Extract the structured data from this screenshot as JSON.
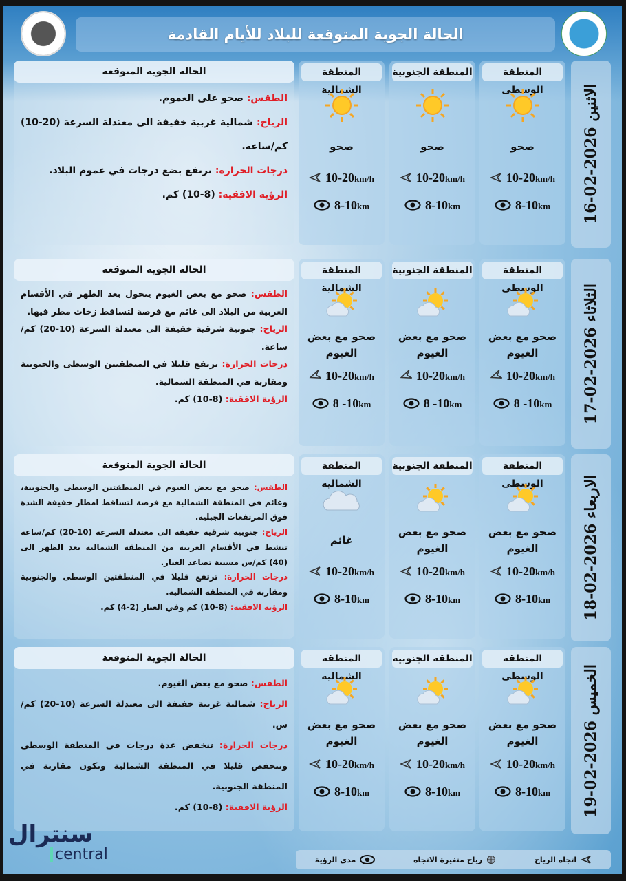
{
  "header": {
    "title": "الحالة الجوية المتوقعة للبلاد للأيام القادمة"
  },
  "colors": {
    "label_red": "#e01e26",
    "banner": "#2f7fc1"
  },
  "days": [
    {
      "day": "الاثنين 2026-02-16",
      "regions": [
        {
          "name": "المنطقة الوسطى",
          "condition": "صحو",
          "icon": "sun-icon",
          "wind": "10-20",
          "wind_unit": "km/h",
          "visibility": "8-10",
          "vis_unit": "km"
        },
        {
          "name": "المنطقة الجنوبية",
          "condition": "صحو",
          "icon": "sun-icon",
          "wind": "10-20",
          "wind_unit": "km/h",
          "visibility": "8-10",
          "vis_unit": "km"
        },
        {
          "name": "المنطقة الشمالية",
          "condition": "صحو",
          "icon": "sun-icon",
          "wind": "10-20",
          "wind_unit": "km/h",
          "visibility": "8-10",
          "vis_unit": "km"
        }
      ],
      "forecast": {
        "title": "الحالة الجوية المتوقعة",
        "lines": [
          {
            "label": "الطقس:",
            "text": "صحو على العموم."
          },
          {
            "label": "الرياح:",
            "text": "شمالية غربية خفيفة الى معتدلة السرعة (20-10) كم/ساعة."
          },
          {
            "label": "درجات الحرارة:",
            "text": "ترتفع بضع درجات في عموم البلاد."
          },
          {
            "label": "الرؤية الافقية:",
            "text": "(8-10) كم."
          }
        ]
      }
    },
    {
      "day": "الثلاثاء 2026-02-17",
      "regions": [
        {
          "name": "المنطقة الوسطى",
          "condition": "صحو مع بعض الغيوم",
          "icon": "partly-cloudy-icon",
          "wind": "10-20",
          "wind_unit": "km/h",
          "visibility": "8 -10",
          "vis_unit": "km"
        },
        {
          "name": "المنطقة الجنوبية",
          "condition": "صحو مع بعض الغيوم",
          "icon": "partly-cloudy-icon",
          "wind": "10-20",
          "wind_unit": "km/h",
          "visibility": "8 -10",
          "vis_unit": "km"
        },
        {
          "name": "المنطقة الشمالية",
          "condition": "صحو مع بعض الغيوم",
          "icon": "partly-cloudy-icon",
          "wind": "10-20",
          "wind_unit": "km/h",
          "visibility": "8 -10",
          "vis_unit": "km"
        }
      ],
      "forecast": {
        "title": "الحالة الجوية المتوقعة",
        "lines": [
          {
            "label": "الطقس:",
            "text": "صحو مع بعض الغيوم يتحول بعد الظهر في الأقسام الغربية من البلاد الى غائم مع فرصة لتساقط زخات مطر فيها."
          },
          {
            "label": "الرياح:",
            "text": "جنوبية شرقية خفيفة الى معتدلة السرعة (10-20) كم/ساعة."
          },
          {
            "label": "درجات الحرارة:",
            "text": "ترتفع قليلا في المنطقتين الوسطى والجنوبية ومقاربة في المنطقة الشمالية."
          },
          {
            "label": "الرؤية الافقية:",
            "text": "(8-10) كم."
          }
        ]
      }
    },
    {
      "day": "الاربعاء 2026-02-18",
      "regions": [
        {
          "name": "المنطقة الوسطى",
          "condition": "صحو مع بعض الغيوم",
          "icon": "partly-cloudy-icon",
          "wind": "10-20",
          "wind_unit": "km/h",
          "visibility": "8-10",
          "vis_unit": "km"
        },
        {
          "name": "المنطقة الجنوبية",
          "condition": "صحو مع بعض الغيوم",
          "icon": "partly-cloudy-icon",
          "wind": "10-20",
          "wind_unit": "km/h",
          "visibility": "8-10",
          "vis_unit": "km"
        },
        {
          "name": "المنطقة الشمالية",
          "condition": "غائم",
          "icon": "cloud-icon",
          "wind": "10-20",
          "wind_unit": "km/h",
          "visibility": "8-10",
          "vis_unit": "km"
        }
      ],
      "forecast": {
        "title": "الحالة الجوية المتوقعة",
        "lines": [
          {
            "label": "الطقس:",
            "text": "صحو مع بعض الغيوم في المنطقتين الوسطى والجنوبية، وغائم في المنطقة الشمالية مع فرصة لتساقط امطار خفيفة الشدة فوق المرتفعات الجبلية."
          },
          {
            "label": "الرياح:",
            "text": "جنوبية شرقية خفيفة الى معتدلة السرعة (10-20) كم/ساعة تنشط في الأقسام الغربية من المنطقة الشمالية بعد الظهر الى (40) كم/س مسببة تصاعد الغبار."
          },
          {
            "label": "درجات الحرارة:",
            "text": "ترتفع قليلا في المنطقتين الوسطى والجنوبية ومقاربة في المنطقة الشمالية."
          },
          {
            "label": "الرؤية الافقية:",
            "text": "(8-10) كم وفي الغبار (2-4) كم."
          }
        ]
      }
    },
    {
      "day": "الخميس 2026-02-19",
      "regions": [
        {
          "name": "المنطقة الوسطى",
          "condition": "صحو مع بعض الغيوم",
          "icon": "partly-cloudy-icon",
          "wind": "10-20",
          "wind_unit": "km/h",
          "visibility": "8-10",
          "vis_unit": "km"
        },
        {
          "name": "المنطقة الجنوبية",
          "condition": "صحو مع بعض الغيوم",
          "icon": "partly-cloudy-icon",
          "wind": "10-20",
          "wind_unit": "km/h",
          "visibility": "8-10",
          "vis_unit": "km"
        },
        {
          "name": "المنطقة الشمالية",
          "condition": "صحو مع بعض الغيوم",
          "icon": "partly-cloudy-icon",
          "wind": "10-20",
          "wind_unit": "km/h",
          "visibility": "8-10",
          "vis_unit": "km"
        }
      ],
      "forecast": {
        "title": "الحالة الجوية المتوقعة",
        "lines": [
          {
            "label": "الطقس:",
            "text": "صحو مع بعض الغيوم."
          },
          {
            "label": "الرياح:",
            "text": "شمالية غربية خفيفة الى معتدلة السرعة (10-20) كم/س."
          },
          {
            "label": "درجات الحرارة:",
            "text": "تنخفض عدة درجات في المنطقة الوسطى وتنخفض قليلا في المنطقة الشمالية وتكون مقاربة في المنطقة الجنوبية."
          },
          {
            "label": "الرؤية الافقية:",
            "text": "(8-10) كم."
          }
        ]
      }
    }
  ],
  "legend": {
    "wind_direction": "اتجاه الرياح",
    "variable_wind": "رياح متغيرة الاتجاه",
    "visibility": "مدى الرؤية"
  },
  "brand": {
    "arabic": "سنترال",
    "latin": "central"
  }
}
